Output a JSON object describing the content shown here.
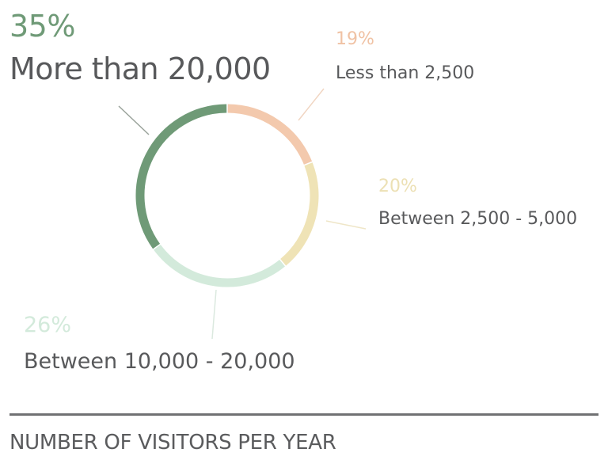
{
  "chart_data": {
    "type": "pie",
    "variant": "donut",
    "title": "Number of visitors per year",
    "categories": [
      "Less than 2,500",
      "Between 2,500 - 5,000",
      "Between 10,000 - 20,000",
      "More than 20,000"
    ],
    "values": [
      19,
      20,
      26,
      35
    ],
    "unit": "%",
    "colors": [
      "#f3c9ad",
      "#efe3b6",
      "#d3eadb",
      "#6f9a77"
    ],
    "start_angle_deg": 0,
    "direction": "clockwise"
  },
  "slices": [
    {
      "pct": "19%",
      "label": "Less than 2,500",
      "color": "#f3c9ad"
    },
    {
      "pct": "20%",
      "label": "Between 2,500 - 5,000",
      "color": "#efe3b6"
    },
    {
      "pct": "26%",
      "label": "Between 10,000 - 20,000",
      "color": "#d3eadb"
    },
    {
      "pct": "35%",
      "label": "More than 20,000",
      "color": "#6f9a77"
    }
  ],
  "caption": "NUMBER OF VISITORS PER YEAR"
}
